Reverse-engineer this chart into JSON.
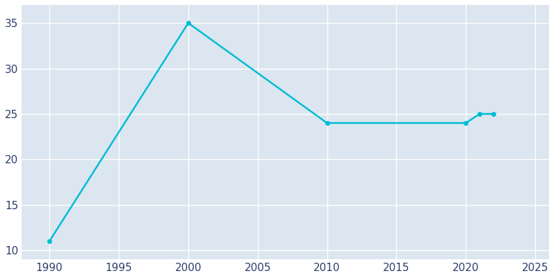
{
  "years": [
    1990,
    2000,
    2010,
    2020,
    2021,
    2022
  ],
  "population": [
    11,
    35,
    24,
    24,
    25,
    25
  ],
  "line_color": "#00BCD4",
  "plot_bg_color": "#dce6f0",
  "figure_bg_color": "#ffffff",
  "grid_color": "#ffffff",
  "tick_color": "#2d3d6b",
  "xlim": [
    1988,
    2026
  ],
  "ylim": [
    9,
    37
  ],
  "xticks": [
    1990,
    1995,
    2000,
    2005,
    2010,
    2015,
    2020,
    2025
  ],
  "yticks": [
    10,
    15,
    20,
    25,
    30,
    35
  ],
  "line_width": 1.8,
  "marker": "o",
  "marker_size": 4,
  "tick_fontsize": 11
}
